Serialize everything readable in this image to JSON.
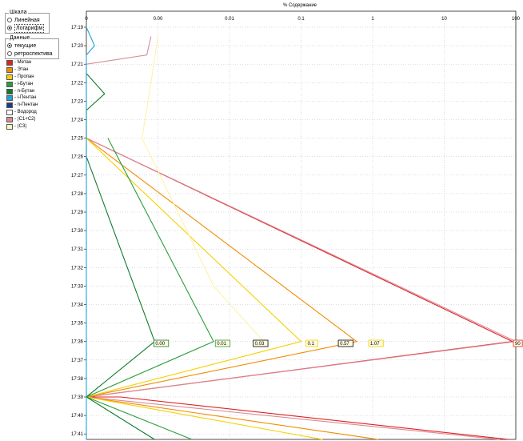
{
  "scale_group": {
    "title": "Шкала",
    "options": [
      {
        "label": "Линейная",
        "selected": false
      },
      {
        "label": "Логарифм",
        "selected": true
      }
    ]
  },
  "data_group": {
    "title": "Данные",
    "options": [
      {
        "label": "текущие",
        "selected": true
      },
      {
        "label": "ретроспектива",
        "selected": false
      }
    ]
  },
  "legend": [
    {
      "label": "- Метан",
      "color": "#e02020"
    },
    {
      "label": "- Этан",
      "color": "#f08c00"
    },
    {
      "label": "- Пропан",
      "color": "#f5d000"
    },
    {
      "label": "- i-Бутан",
      "color": "#2a9d3a"
    },
    {
      "label": "- n-Бутан",
      "color": "#127a2e"
    },
    {
      "label": "- i-Пентан",
      "color": "#1fa3d6"
    },
    {
      "label": "- n-Пентан",
      "color": "#1f3a8a"
    },
    {
      "label": "- Водород",
      "color": "#ffffff"
    },
    {
      "label": "- (C1+C2)",
      "color": "#d98a96"
    },
    {
      "label": "- (C3)",
      "color": "#fff7c2"
    }
  ],
  "chart_data": {
    "type": "line",
    "title": "% Содержание",
    "xscale": "log",
    "xlim": [
      0.0001,
      100
    ],
    "x_ticks": [
      "0",
      "0.00",
      "0.01",
      "0.1",
      "1",
      "10",
      "100"
    ],
    "y_ticks": [
      "17:19",
      "17:20",
      "17:21",
      "17:22",
      "17:23",
      "17:24",
      "17:25",
      "17:26",
      "17:27",
      "17:28",
      "17:29",
      "17:30",
      "17:31",
      "17:32",
      "17:33",
      "17:34",
      "17:35",
      "17:36",
      "17:37",
      "17:38",
      "17:39",
      "17:40",
      "17:41"
    ],
    "ylabel": "",
    "grid": true,
    "series": [
      {
        "name": "- Метан",
        "color": "#e02020",
        "points": [
          [
            "17:25.0",
            0.0001
          ],
          [
            "17:36.0",
            90
          ],
          [
            "17:39.0",
            0.0001
          ],
          [
            "17:39.0",
            0.0003
          ],
          [
            "17:41.3",
            80
          ]
        ]
      },
      {
        "name": "- (C1+C2)",
        "color": "#d98a96",
        "points": [
          [
            "17:19.5",
            0.0008
          ],
          [
            "17:20.5",
            0.0007
          ],
          [
            "17:21.0",
            0.0001
          ],
          [
            "17:25.0",
            0.0001
          ],
          [
            "17:36.0",
            100
          ],
          [
            "17:39.0",
            0.0001
          ],
          [
            "17:41.3",
            60
          ]
        ]
      },
      {
        "name": "- Этан",
        "color": "#f08c00",
        "points": [
          [
            "17:25.0",
            0.0001
          ],
          [
            "17:36.0",
            0.6
          ],
          [
            "17:39.0",
            0.0001
          ],
          [
            "17:41.3",
            1.2
          ]
        ]
      },
      {
        "name": "- Пропан",
        "color": "#f5d000",
        "points": [
          [
            "17:25.0",
            0.0001
          ],
          [
            "17:36.0",
            0.1
          ],
          [
            "17:39.0",
            0.0001
          ],
          [
            "17:41.3",
            0.2
          ]
        ]
      },
      {
        "name": "- i-Бутан",
        "color": "#2a9d3a",
        "points": [
          [
            "17:25.0",
            0.0002
          ],
          [
            "17:36.0",
            0.006
          ],
          [
            "17:39.0",
            0.0001
          ],
          [
            "17:41.3",
            0.003
          ]
        ]
      },
      {
        "name": "- n-Бутан",
        "color": "#127a2e",
        "points": [
          [
            "17:21.5",
            0.0001
          ],
          [
            "17:22.6",
            0.00018
          ],
          [
            "17:23.5",
            0.0001
          ],
          [
            "17:24.5",
            0.0001
          ],
          [
            "17:26.0",
            0.0001
          ],
          [
            "17:36.0",
            0.0009
          ],
          [
            "17:39.0",
            0.0001
          ],
          [
            "17:41.3",
            0.0009
          ]
        ]
      },
      {
        "name": "- i-Пентан",
        "color": "#1fa3d6",
        "points": [
          [
            "17:19.0",
            0.0001
          ],
          [
            "17:20.0",
            0.00013
          ],
          [
            "17:20.5",
            0.0001
          ],
          [
            "17:41.3",
            0.0001
          ]
        ]
      },
      {
        "name": "- (C3)",
        "color": "#fff2a8",
        "points": [
          [
            "17:19.5",
            0.001
          ],
          [
            "17:22.0",
            0.0008
          ],
          [
            "17:25.0",
            0.0006
          ],
          [
            "17:33.0",
            0.006
          ],
          [
            "17:36.0",
            0.03
          ]
        ]
      }
    ],
    "annotations": [
      {
        "text": "0.00",
        "t": "17:36.1",
        "x": 0.0009,
        "color": "#127a2e"
      },
      {
        "text": "0.01",
        "t": "17:36.1",
        "x": 0.0065,
        "color": "#2a9d3a"
      },
      {
        "text": "0.03",
        "t": "17:36.1",
        "x": 0.022,
        "color": "#000000"
      },
      {
        "text": "0.1",
        "t": "17:36.1",
        "x": 0.12,
        "color": "#f5d000"
      },
      {
        "text": "0.57",
        "t": "17:36.1",
        "x": 0.34,
        "color": "#000000"
      },
      {
        "text": "1.07",
        "t": "17:36.1",
        "x": 0.9,
        "color": "#f5d000"
      },
      {
        "text": "90",
        "t": "17:36.1",
        "x": 95,
        "color": "#e02020"
      }
    ]
  }
}
